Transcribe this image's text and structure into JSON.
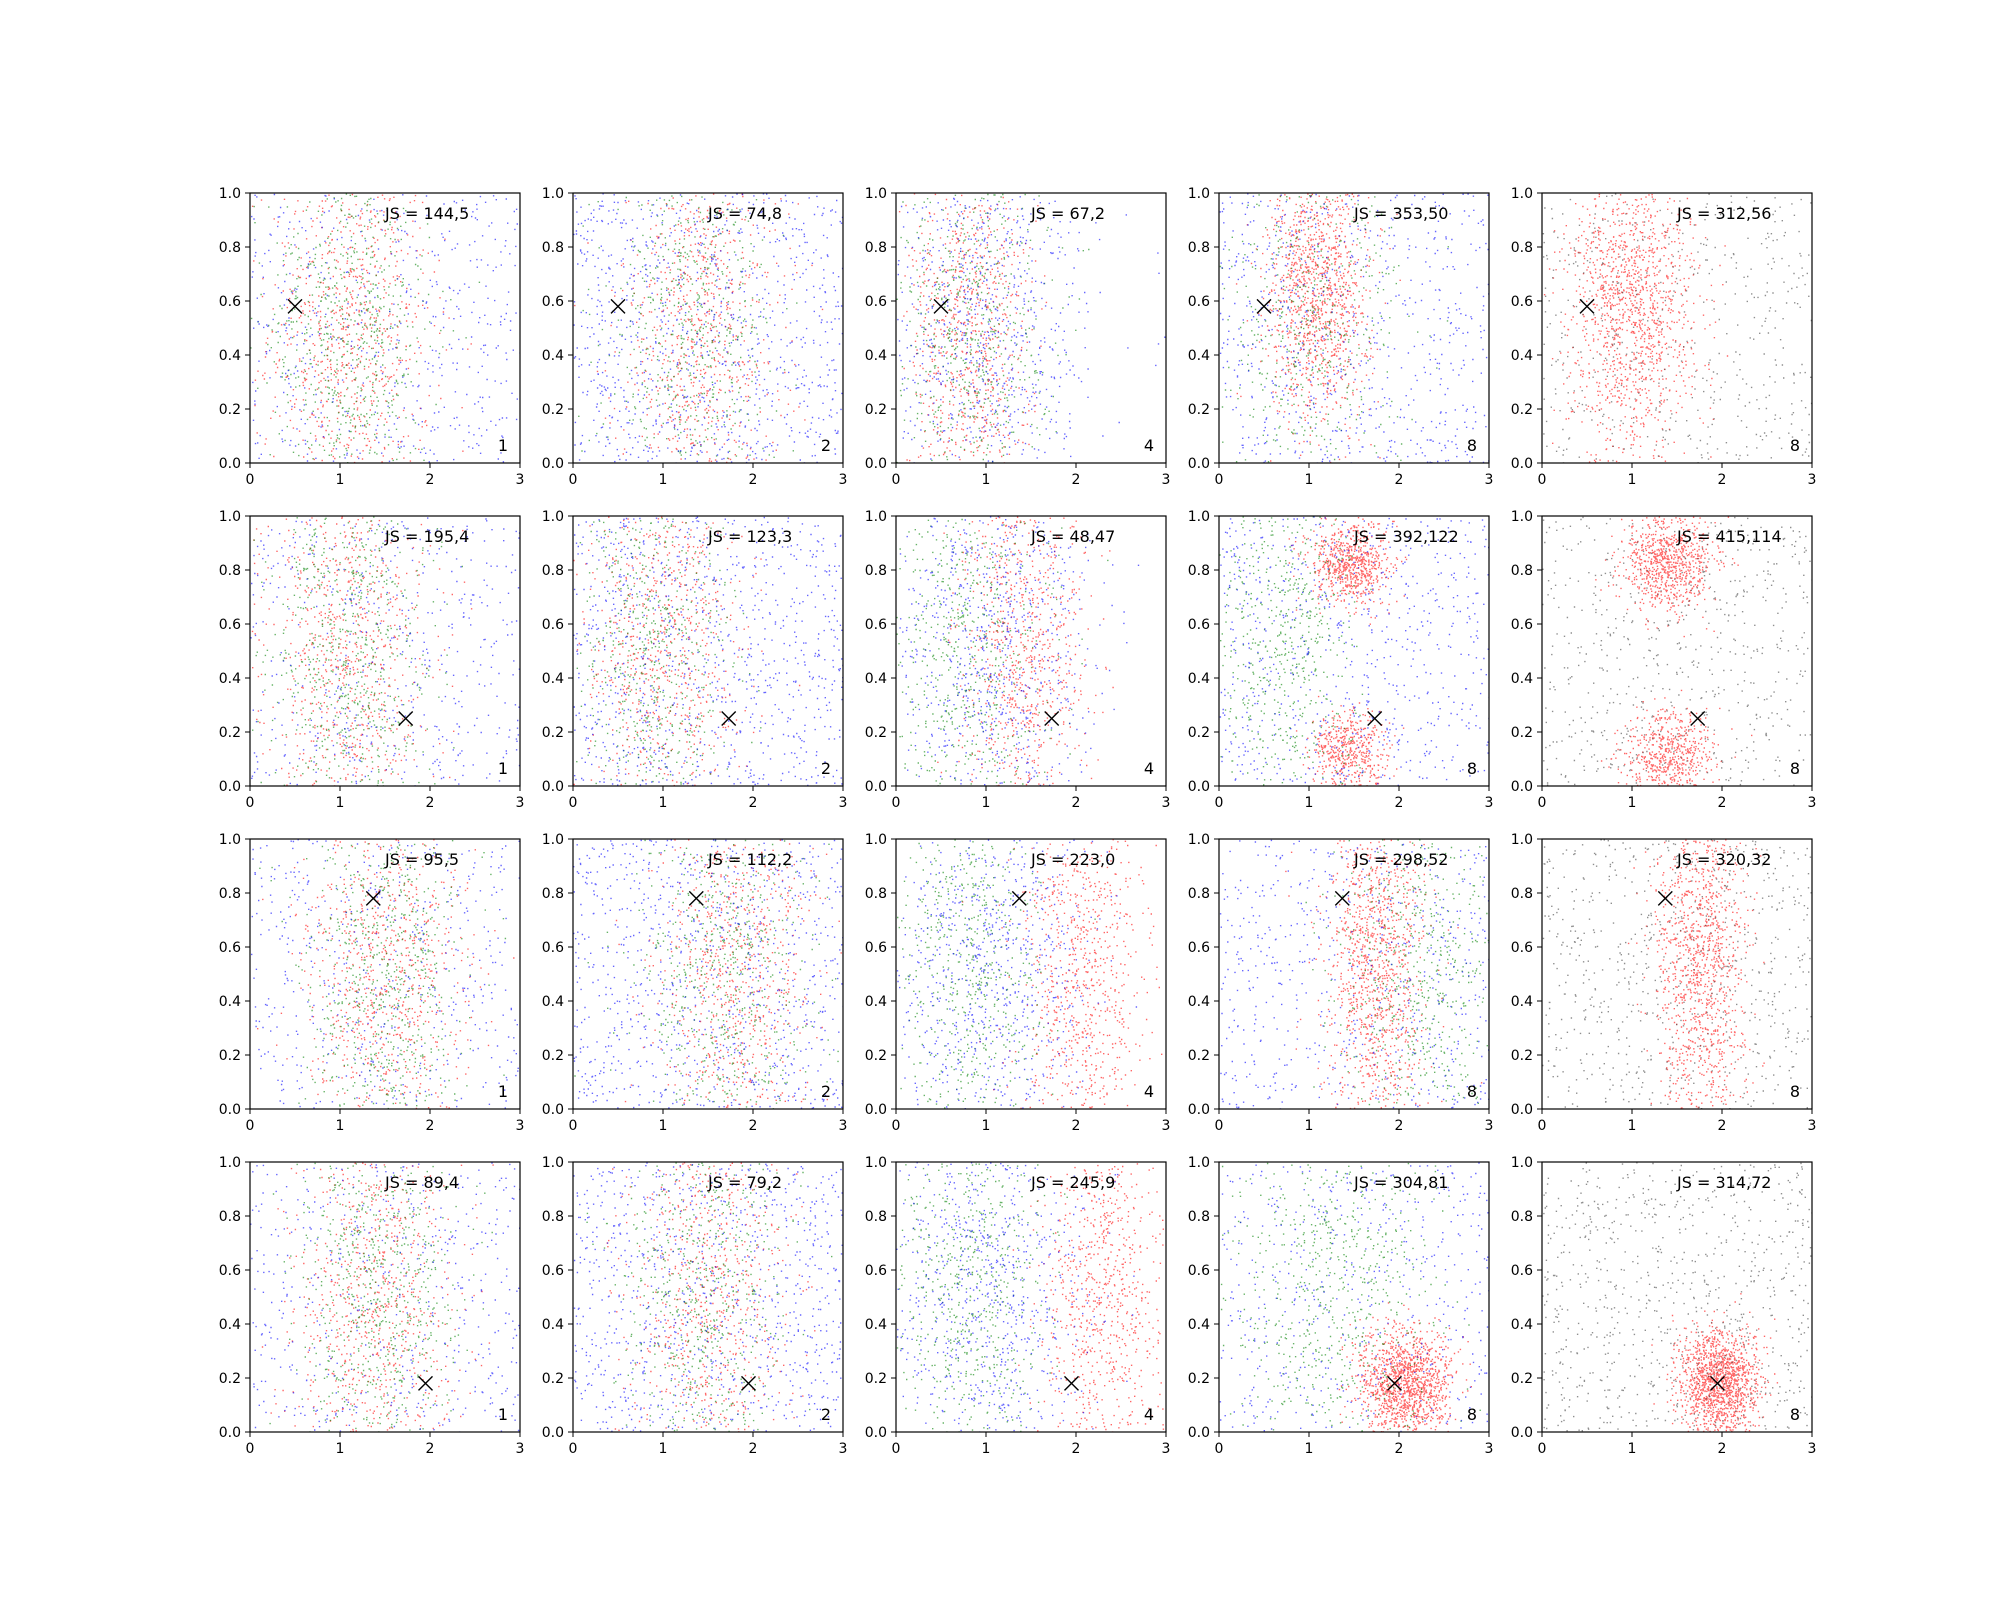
{
  "figure": {
    "rows": 4,
    "cols": 5,
    "colors": {
      "red": "#ff0000",
      "green": "#008000",
      "blue": "#0000ff",
      "gray": "#444444",
      "marker": "#000000"
    }
  },
  "chart_data": {
    "type": "scatter",
    "xlim": [
      0,
      3
    ],
    "ylim": [
      0,
      1
    ],
    "xticks": [
      "0",
      "1",
      "2",
      "3"
    ],
    "yticks": [
      "0.0",
      "0.2",
      "0.4",
      "0.6",
      "0.8",
      "1.0"
    ],
    "grid": false,
    "column_labels": [
      "1",
      "2",
      "4",
      "8",
      "8"
    ],
    "rows": [
      {
        "marker": {
          "x": 0.5,
          "y": 0.58
        },
        "panels": [
          {
            "label": "JS = 144,5",
            "corner": "1"
          },
          {
            "label": "JS = 74,8",
            "corner": "2"
          },
          {
            "label": "JS = 67,2",
            "corner": "4"
          },
          {
            "label": "JS = 353,50",
            "corner": "8"
          },
          {
            "label": "JS = 312,56",
            "corner": "8"
          }
        ]
      },
      {
        "marker": {
          "x": 1.73,
          "y": 0.25
        },
        "panels": [
          {
            "label": "JS = 195,4",
            "corner": "1"
          },
          {
            "label": "JS = 123,3",
            "corner": "2"
          },
          {
            "label": "JS = 48,47",
            "corner": "4"
          },
          {
            "label": "JS = 392,122",
            "corner": "8"
          },
          {
            "label": "JS = 415,114",
            "corner": "8"
          }
        ]
      },
      {
        "marker": {
          "x": 1.37,
          "y": 0.78
        },
        "panels": [
          {
            "label": "JS = 95,5",
            "corner": "1"
          },
          {
            "label": "JS = 112,2",
            "corner": "2"
          },
          {
            "label": "JS = 223,0",
            "corner": "4"
          },
          {
            "label": "JS = 298,52",
            "corner": "8"
          },
          {
            "label": "JS = 320,32",
            "corner": "8"
          }
        ]
      },
      {
        "marker": {
          "x": 1.95,
          "y": 0.18
        },
        "panels": [
          {
            "label": "JS = 89,4",
            "corner": "1"
          },
          {
            "label": "JS = 79,2",
            "corner": "2"
          },
          {
            "label": "JS = 245,9",
            "corner": "4"
          },
          {
            "label": "JS = 304,81",
            "corner": "8"
          },
          {
            "label": "JS = 314,72",
            "corner": "8"
          }
        ]
      }
    ]
  }
}
